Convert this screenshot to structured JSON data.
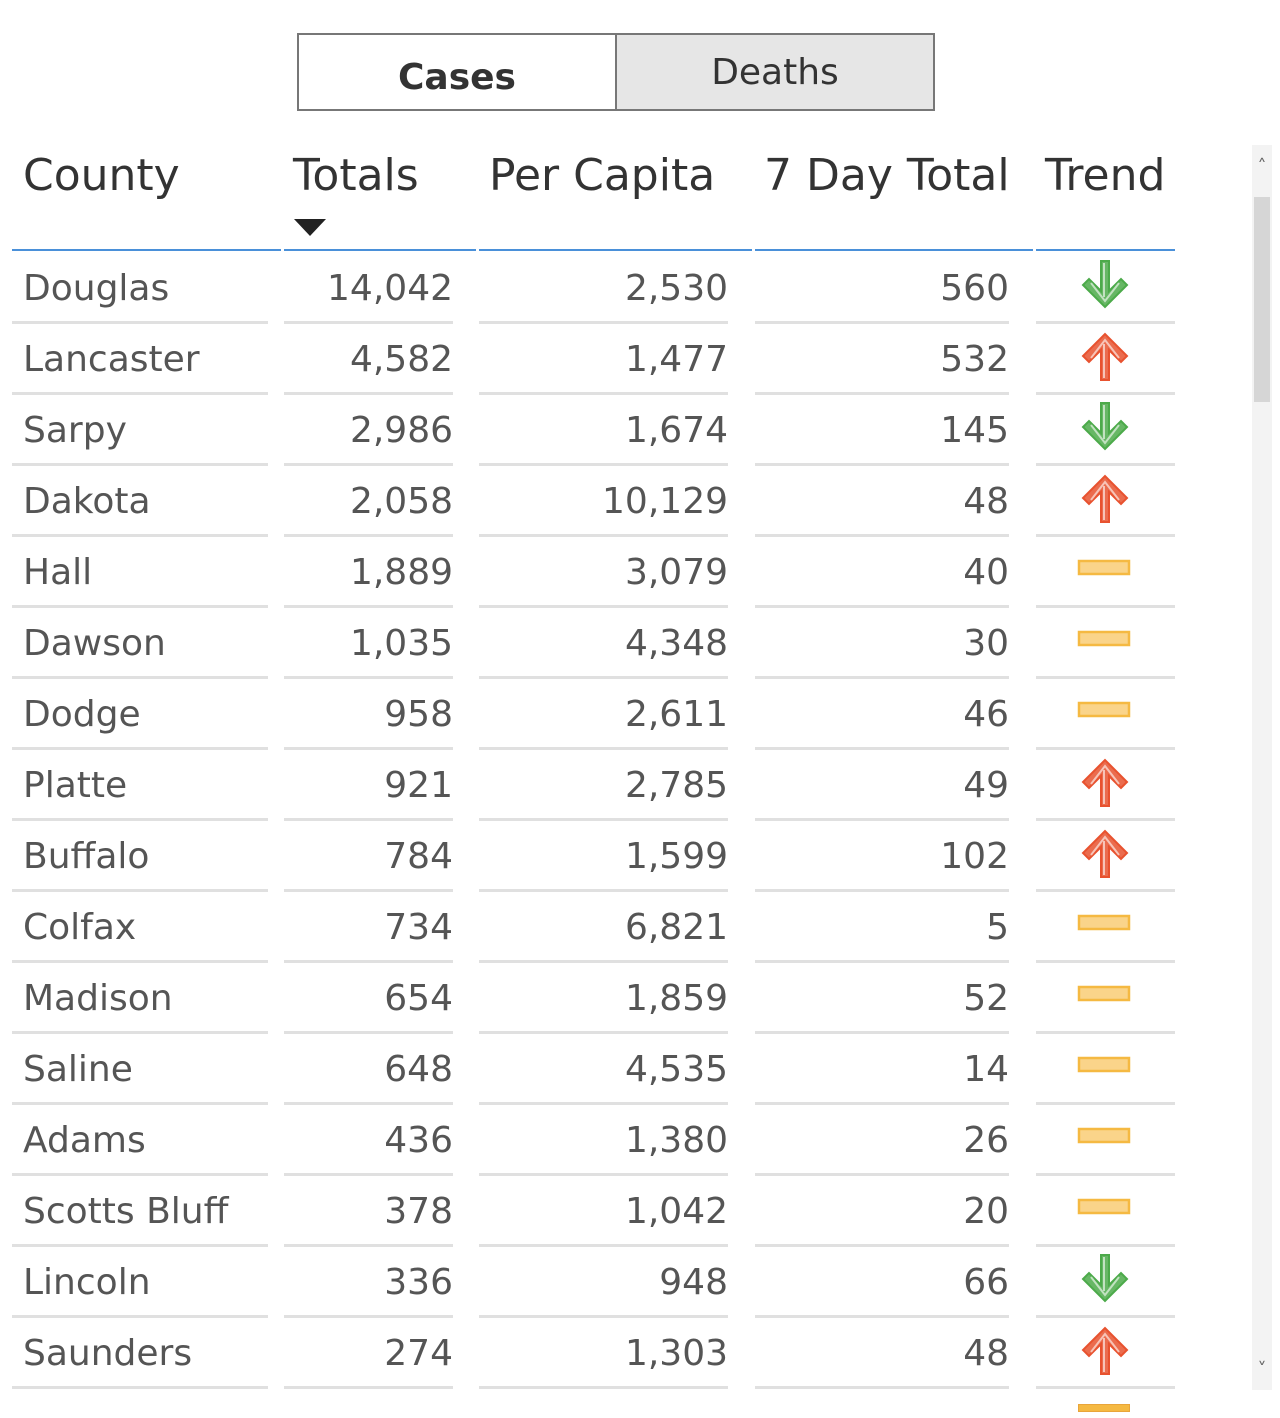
{
  "toggle": {
    "cases_label": "Cases",
    "deaths_label": "Deaths",
    "selected": "Cases"
  },
  "table": {
    "headers": {
      "county": "County",
      "totals": "Totals",
      "per_capita": "Per Capita",
      "seven_day": "7 Day Total",
      "trend": "Trend"
    },
    "sort": {
      "column": "totals",
      "direction": "descending",
      "icon": "sort-descending-icon"
    },
    "rows": [
      {
        "county": "Douglas",
        "totals": "14,042",
        "per_capita": "2,530",
        "seven_day": "560",
        "trend": "down"
      },
      {
        "county": "Lancaster",
        "totals": "4,582",
        "per_capita": "1,477",
        "seven_day": "532",
        "trend": "up"
      },
      {
        "county": "Sarpy",
        "totals": "2,986",
        "per_capita": "1,674",
        "seven_day": "145",
        "trend": "down"
      },
      {
        "county": "Dakota",
        "totals": "2,058",
        "per_capita": "10,129",
        "seven_day": "48",
        "trend": "up"
      },
      {
        "county": "Hall",
        "totals": "1,889",
        "per_capita": "3,079",
        "seven_day": "40",
        "trend": "flat"
      },
      {
        "county": "Dawson",
        "totals": "1,035",
        "per_capita": "4,348",
        "seven_day": "30",
        "trend": "flat"
      },
      {
        "county": "Dodge",
        "totals": "958",
        "per_capita": "2,611",
        "seven_day": "46",
        "trend": "flat"
      },
      {
        "county": "Platte",
        "totals": "921",
        "per_capita": "2,785",
        "seven_day": "49",
        "trend": "up"
      },
      {
        "county": "Buffalo",
        "totals": "784",
        "per_capita": "1,599",
        "seven_day": "102",
        "trend": "up"
      },
      {
        "county": "Colfax",
        "totals": "734",
        "per_capita": "6,821",
        "seven_day": "5",
        "trend": "flat"
      },
      {
        "county": "Madison",
        "totals": "654",
        "per_capita": "1,859",
        "seven_day": "52",
        "trend": "flat"
      },
      {
        "county": "Saline",
        "totals": "648",
        "per_capita": "4,535",
        "seven_day": "14",
        "trend": "flat"
      },
      {
        "county": "Adams",
        "totals": "436",
        "per_capita": "1,380",
        "seven_day": "26",
        "trend": "flat"
      },
      {
        "county": "Scotts Bluff",
        "totals": "378",
        "per_capita": "1,042",
        "seven_day": "20",
        "trend": "flat"
      },
      {
        "county": "Lincoln",
        "totals": "336",
        "per_capita": "948",
        "seven_day": "66",
        "trend": "down"
      },
      {
        "county": "Saunders",
        "totals": "274",
        "per_capita": "1,303",
        "seven_day": "48",
        "trend": "up"
      }
    ]
  },
  "colors": {
    "up": "#e8522f",
    "down": "#4caa4a",
    "flat": "#f5b942",
    "header_line": "#4a90d9"
  },
  "icons": {
    "up": "arrow-up-icon",
    "down": "arrow-down-icon",
    "flat": "flat-dash-icon"
  },
  "scrollbar": {
    "up_glyph": "˄",
    "down_glyph": "˅"
  }
}
